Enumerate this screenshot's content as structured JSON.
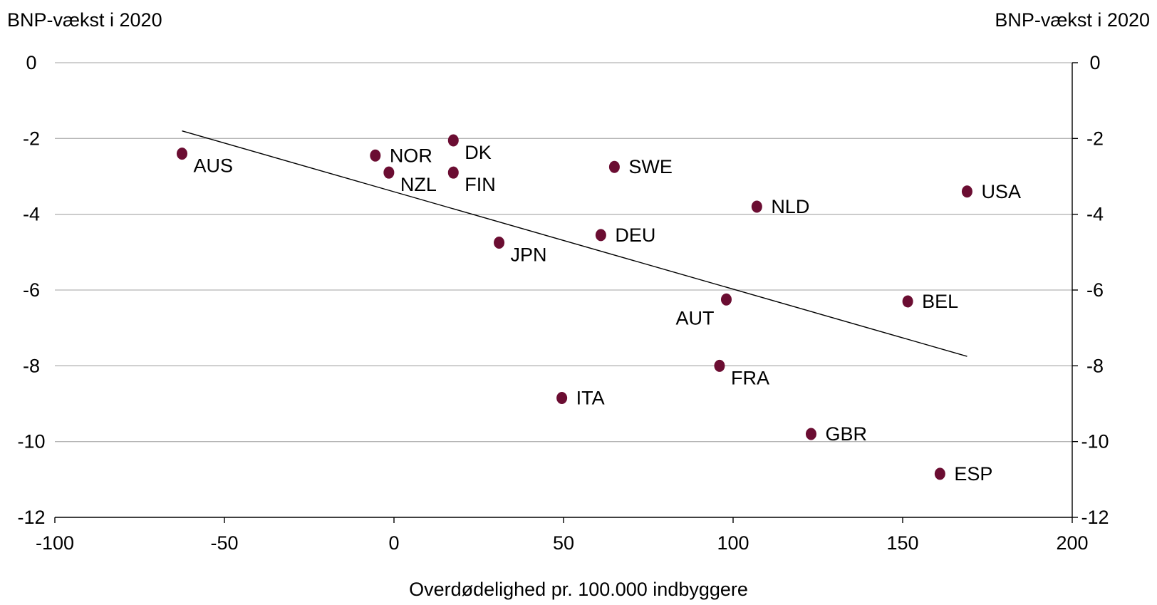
{
  "chart_data": {
    "type": "scatter",
    "ylabel_left": "BNP-vækst i 2020",
    "ylabel_right": "BNP-vækst i 2020",
    "xlabel": "Overdødelighed pr. 100.000 indbyggere",
    "xlim": [
      -100,
      200
    ],
    "ylim": [
      -12,
      0
    ],
    "x_ticks": [
      -100,
      -50,
      0,
      50,
      100,
      150,
      200
    ],
    "y_ticks": [
      0,
      -2,
      -4,
      -6,
      -8,
      -10,
      -12
    ],
    "grid": "horizontal",
    "point_color": "#6b0d32",
    "points": [
      {
        "label": "AUS",
        "x": -62.5,
        "y": -2.4,
        "label_pos": "below-right"
      },
      {
        "label": "NOR",
        "x": -5.5,
        "y": -2.45,
        "label_pos": "right"
      },
      {
        "label": "NZL",
        "x": -1.5,
        "y": -2.9,
        "label_pos": "below-right"
      },
      {
        "label": "DK",
        "x": 17.5,
        "y": -2.05,
        "label_pos": "below-right"
      },
      {
        "label": "FIN",
        "x": 17.5,
        "y": -2.9,
        "label_pos": "below-right"
      },
      {
        "label": "SWE",
        "x": 65,
        "y": -2.75,
        "label_pos": "right"
      },
      {
        "label": "JPN",
        "x": 31,
        "y": -4.75,
        "label_pos": "below-right"
      },
      {
        "label": "DEU",
        "x": 61,
        "y": -4.55,
        "label_pos": "right"
      },
      {
        "label": "NLD",
        "x": 107,
        "y": -3.8,
        "label_pos": "right"
      },
      {
        "label": "USA",
        "x": 169,
        "y": -3.4,
        "label_pos": "right"
      },
      {
        "label": "AUT",
        "x": 98,
        "y": -6.25,
        "label_pos": "below-left"
      },
      {
        "label": "BEL",
        "x": 151.5,
        "y": -6.3,
        "label_pos": "right"
      },
      {
        "label": "FRA",
        "x": 96,
        "y": -8,
        "label_pos": "below-right"
      },
      {
        "label": "ITA",
        "x": 49.5,
        "y": -8.85,
        "label_pos": "right"
      },
      {
        "label": "GBR",
        "x": 123,
        "y": -9.8,
        "label_pos": "right"
      },
      {
        "label": "ESP",
        "x": 161,
        "y": -10.85,
        "label_pos": "right"
      }
    ],
    "trendline": {
      "x": [
        -62.5,
        169
      ],
      "y": [
        -1.8,
        -7.75
      ]
    }
  }
}
